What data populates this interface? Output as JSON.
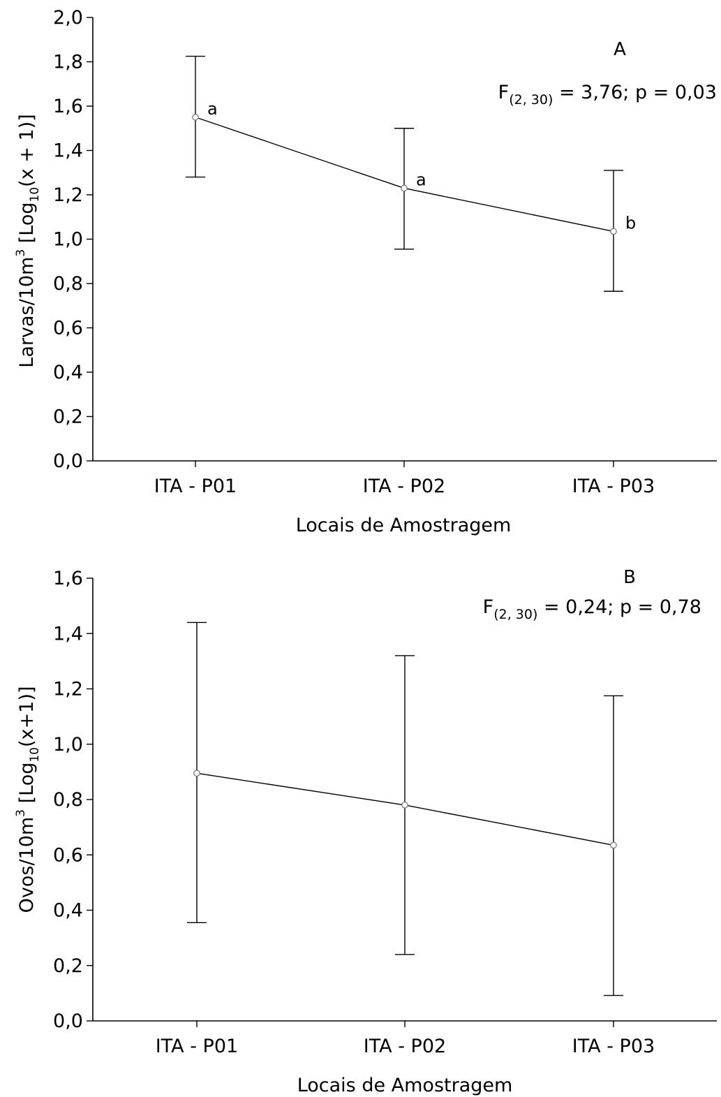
{
  "chart_data": [
    {
      "type": "line",
      "panel": "A",
      "categories": [
        "ITA - P01",
        "ITA - P02",
        "ITA - P03"
      ],
      "series": [
        {
          "values": [
            1.55,
            1.23,
            1.035
          ],
          "err_low": [
            1.28,
            0.955,
            0.765
          ],
          "err_high": [
            1.825,
            1.5,
            1.31
          ],
          "labels": [
            "a",
            "a",
            "b"
          ]
        }
      ],
      "xlabel": "Locais de Amostragem",
      "ylabel": {
        "main": "Larvas/10m",
        "sup": "3",
        "mid": " [Log",
        "sub": "10",
        "end": "(x + 1)]"
      },
      "stat": {
        "base": "F",
        "sub": "(2, 30)",
        "rest": " = 3,76; p = 0,03"
      },
      "ylim": [
        0,
        2
      ],
      "yticks": [
        "0,0",
        "0,2",
        "0,4",
        "0,6",
        "0,8",
        "1,0",
        "1,2",
        "1,4",
        "1,6",
        "1,8",
        "2,0"
      ],
      "grid": false
    },
    {
      "type": "line",
      "panel": "B",
      "categories": [
        "ITA - P01",
        "ITA - P02",
        "ITA - P03"
      ],
      "series": [
        {
          "values": [
            0.895,
            0.78,
            0.635
          ],
          "err_low": [
            0.355,
            0.24,
            0.092
          ],
          "err_high": [
            1.44,
            1.32,
            1.175
          ],
          "labels": [
            "",
            "",
            ""
          ]
        }
      ],
      "xlabel": "Locais de Amostragem",
      "ylabel": {
        "main": "Ovos/10m",
        "sup": "3",
        "mid": " [Log",
        "sub": "10",
        "end": "(x+1)]"
      },
      "stat": {
        "base": "F",
        "sub": "(2, 30)",
        "rest": " = 0,24; p = 0,78"
      },
      "ylim": [
        0,
        1.6
      ],
      "yticks": [
        "0,0",
        "0,2",
        "0,4",
        "0,6",
        "0,8",
        "1,0",
        "1,2",
        "1,4",
        "1,6"
      ],
      "grid": false
    }
  ]
}
